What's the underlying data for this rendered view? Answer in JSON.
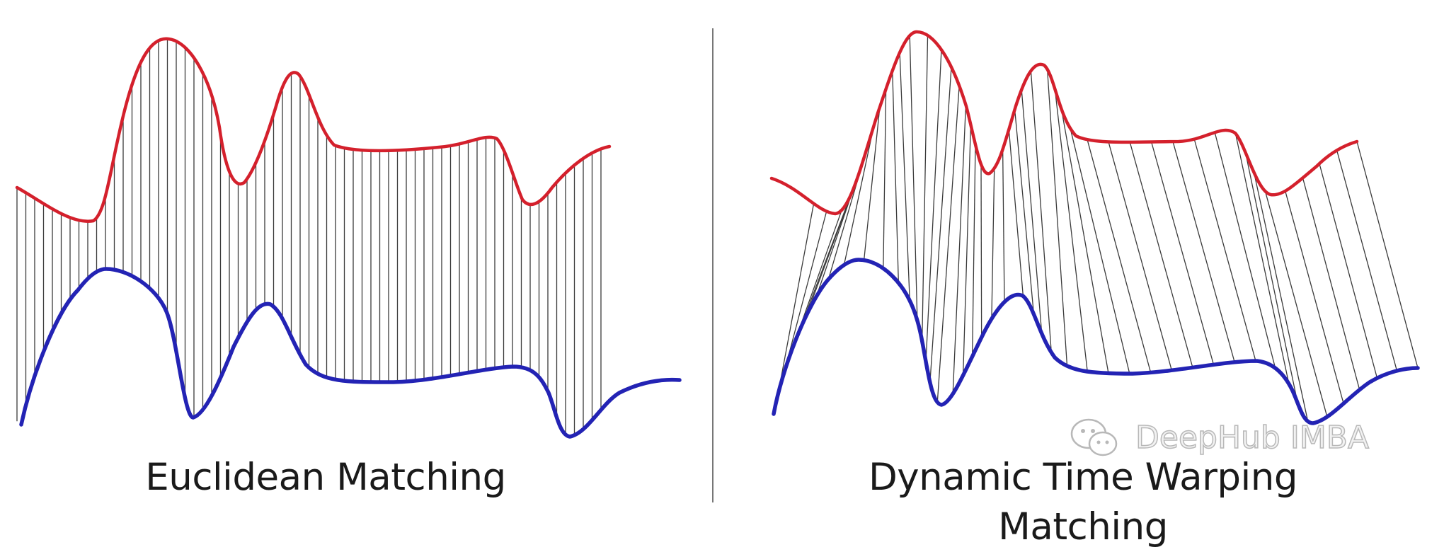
{
  "left_panel": {
    "caption": "Euclidean Matching"
  },
  "right_panel": {
    "caption": "Dynamic Time Warping Matching"
  },
  "watermark": {
    "text": "DeepHub IMBA",
    "icon": "wechat-icon"
  },
  "colors": {
    "upper_curve": "#d4202c",
    "lower_curve": "#2323b4",
    "match_line": "#3a3a3a",
    "divider": "#777777"
  }
}
